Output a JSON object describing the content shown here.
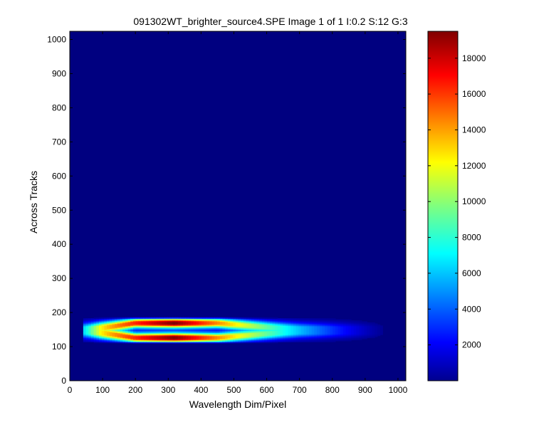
{
  "chart_data": {
    "type": "heatmap",
    "title": "091302WT_brighter_source4.SPE  Image 1 of 1  I:0.2  S:12  G:3",
    "xlabel": "Wavelength Dim/Pixel",
    "ylabel": "Across Tracks",
    "xlim": [
      0,
      1024
    ],
    "ylim": [
      0,
      1024
    ],
    "x_ticks": [
      0,
      100,
      200,
      300,
      400,
      500,
      600,
      700,
      800,
      900,
      1000
    ],
    "y_ticks": [
      0,
      100,
      200,
      300,
      400,
      500,
      600,
      700,
      800,
      900,
      1000
    ],
    "colorbar": {
      "colormap": "jet",
      "range": [
        0,
        19500
      ],
      "ticks": [
        2000,
        4000,
        6000,
        8000,
        10000,
        12000,
        14000,
        16000,
        18000
      ]
    },
    "features": [
      {
        "description": "bright horizontal band",
        "x_range": [
          45,
          975
        ],
        "y_range": [
          115,
          182
        ],
        "peak_value": 19500,
        "peak_x": 320,
        "twin_rows_y": [
          128,
          165
        ]
      }
    ],
    "background_value": 0
  }
}
